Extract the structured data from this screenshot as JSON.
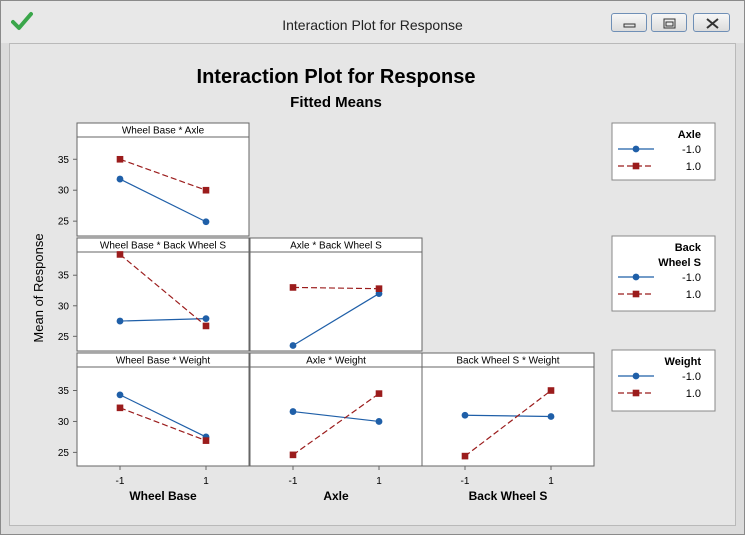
{
  "window": {
    "title": "Interaction Plot for Response",
    "app_icon": "checkmark-icon",
    "controls": [
      "minimize-icon",
      "maximize-icon",
      "close-icon"
    ]
  },
  "colors": {
    "series_neg": "#1f5fa8",
    "series_pos": "#9b1c1c",
    "panel_bg": "#ffffff",
    "window_bg": "#e6e6e6"
  },
  "chart_data": {
    "type": "line",
    "title": "Interaction Plot for Response",
    "subtitle": "Fitted Means",
    "ylabel": "Mean of Response",
    "x_tick_labels": [
      "-1",
      "1"
    ],
    "y_ticks": [
      25,
      30,
      35
    ],
    "columns": [
      "Wheel Base",
      "Axle",
      "Back Wheel S"
    ],
    "panels": [
      {
        "row": 0,
        "col": 0,
        "title": "Wheel Base * Axle",
        "ylim": [
          22.6,
          38.6
        ],
        "series": [
          {
            "name": "-1.0",
            "values": [
              31.8,
              24.9
            ]
          },
          {
            "name": "1.0",
            "values": [
              35.0,
              30.0
            ]
          }
        ]
      },
      {
        "row": 1,
        "col": 0,
        "title": "Wheel Base * Back Wheel S",
        "ylim": [
          22.6,
          38.8
        ],
        "series": [
          {
            "name": "-1.0",
            "values": [
              27.5,
              27.9
            ]
          },
          {
            "name": "1.0",
            "values": [
              38.4,
              26.7
            ]
          }
        ]
      },
      {
        "row": 1,
        "col": 1,
        "title": "Axle * Back Wheel S",
        "ylim": [
          22.6,
          38.8
        ],
        "series": [
          {
            "name": "-1.0",
            "values": [
              23.5,
              32.0
            ]
          },
          {
            "name": "1.0",
            "values": [
              33.0,
              32.8
            ]
          }
        ]
      },
      {
        "row": 2,
        "col": 0,
        "title": "Wheel Base * Weight",
        "ylim": [
          22.8,
          38.8
        ],
        "series": [
          {
            "name": "-1.0",
            "values": [
              34.3,
              27.5
            ]
          },
          {
            "name": "1.0",
            "values": [
              32.2,
              26.9
            ]
          }
        ]
      },
      {
        "row": 2,
        "col": 1,
        "title": "Axle * Weight",
        "ylim": [
          22.8,
          38.8
        ],
        "series": [
          {
            "name": "-1.0",
            "values": [
              31.6,
              30.0
            ]
          },
          {
            "name": "1.0",
            "values": [
              24.6,
              34.5
            ]
          }
        ]
      },
      {
        "row": 2,
        "col": 2,
        "title": "Back Wheel S * Weight",
        "ylim": [
          22.8,
          38.8
        ],
        "series": [
          {
            "name": "-1.0",
            "values": [
              31.0,
              30.8
            ]
          },
          {
            "name": "1.0",
            "values": [
              24.4,
              35.0
            ]
          }
        ]
      }
    ],
    "legends": [
      {
        "title_lines": [
          "Axle"
        ],
        "entries": [
          "-1.0",
          "1.0"
        ]
      },
      {
        "title_lines": [
          "Back",
          "Wheel S"
        ],
        "entries": [
          "-1.0",
          "1.0"
        ]
      },
      {
        "title_lines": [
          "Weight"
        ],
        "entries": [
          "-1.0",
          "1.0"
        ]
      }
    ]
  }
}
